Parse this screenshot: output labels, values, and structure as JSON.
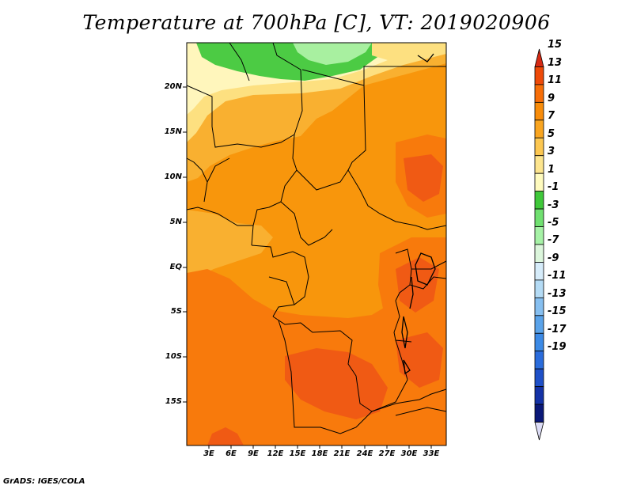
{
  "title": "Temperature at 700hPa [C], VT: 2019020906",
  "credit": "GrADS: IGES/COLA",
  "lat_labels": [
    "20N",
    "15N",
    "10N",
    "5N",
    "EQ",
    "5S",
    "10S",
    "15S"
  ],
  "lon_labels": [
    "3E",
    "6E",
    "9E",
    "12E",
    "15E",
    "18E",
    "21E",
    "24E",
    "27E",
    "30E",
    "33E"
  ],
  "colorbar": {
    "labels": [
      "15",
      "13",
      "11",
      "9",
      "7",
      "5",
      "3",
      "1",
      "-1",
      "-3",
      "-5",
      "-7",
      "-9",
      "-11",
      "-13",
      "-15",
      "-17",
      "-19"
    ],
    "colors_top_to_bottom": [
      "#d62a14",
      "#ee4a08",
      "#f76e08",
      "#f88c0a",
      "#f9a520",
      "#fcc751",
      "#fde58e",
      "#fffbbe",
      "#3fc83a",
      "#70e070",
      "#a6f2a6",
      "#dcf6dc",
      "#d6ecfa",
      "#b4dbf5",
      "#86bff0",
      "#5aa3ea",
      "#3c8ae6",
      "#2a6cdc",
      "#1e50c8",
      "#1432a6",
      "#0a1878",
      "#dcdcf6"
    ]
  },
  "field_colors": {
    "deep_red": "#f05a14",
    "orange_red": "#f87a0c",
    "orange": "#f8960c",
    "light_orange": "#f9b030",
    "yellow": "#fde080",
    "pale_yellow": "#fff6bc",
    "green": "#4ccb44",
    "light_green": "#a8f0a0"
  }
}
